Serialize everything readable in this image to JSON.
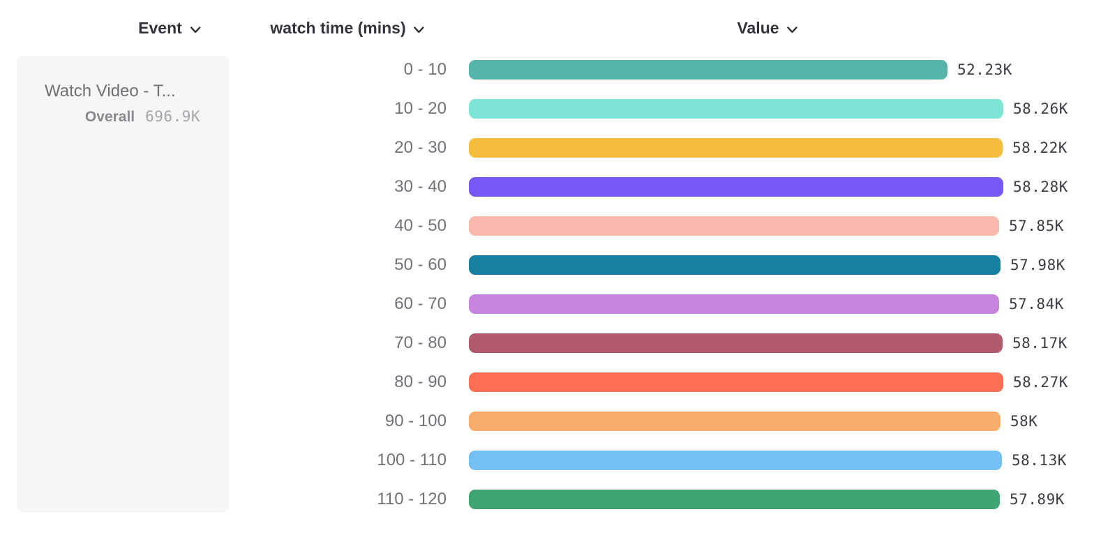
{
  "header": {
    "columns": [
      {
        "label": "Event"
      },
      {
        "label": "watch time (mins)"
      },
      {
        "label": "Value"
      }
    ]
  },
  "legend": {
    "event_name": "Watch Video - T...",
    "overall_label": "Overall",
    "overall_value": "696.9K"
  },
  "chart_data": {
    "type": "bar",
    "orientation": "horizontal",
    "title": "",
    "xlabel": "Value",
    "ylabel": "watch time (mins)",
    "categories": [
      "0 - 10",
      "10 - 20",
      "20 - 30",
      "30 - 40",
      "40 - 50",
      "50 - 60",
      "60 - 70",
      "70 - 80",
      "80 - 90",
      "90 - 100",
      "100 - 110",
      "110 - 120"
    ],
    "values": [
      52.23,
      58.26,
      58.22,
      58.28,
      57.85,
      57.98,
      57.84,
      58.17,
      58.27,
      58.0,
      58.13,
      57.89
    ],
    "unit": "K",
    "values_display": [
      "52.23K",
      "58.26K",
      "58.22K",
      "58.28K",
      "57.85K",
      "57.98K",
      "57.84K",
      "58.17K",
      "58.27K",
      "58K",
      "58.13K",
      "57.89K"
    ],
    "colors": [
      "#57b4ab",
      "#7de3d4",
      "#f6bc3e",
      "#7758f6",
      "#fbb9ae",
      "#15809f",
      "#c684dc",
      "#b25a6e",
      "#fd6e53",
      "#f9ad6e",
      "#74bff4",
      "#3ea573"
    ],
    "xlim": [
      0,
      58.28
    ],
    "grid": false,
    "legend_position": "left"
  }
}
